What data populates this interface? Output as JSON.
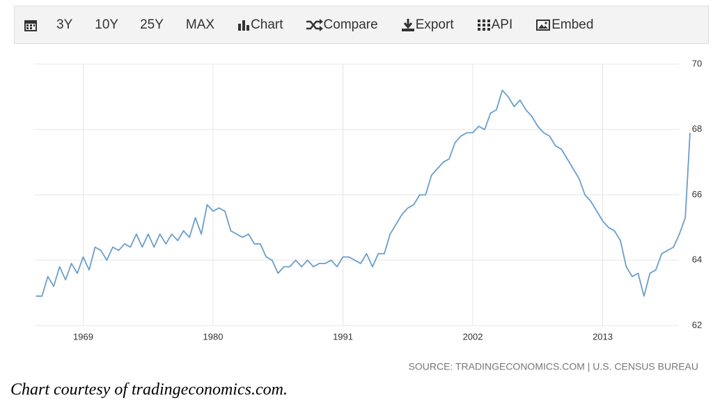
{
  "toolbar": [
    "3Y",
    "10Y",
    "25Y",
    "MAX",
    "Chart",
    "Compare",
    "Export",
    "API",
    "Embed"
  ],
  "chart_data": {
    "type": "line",
    "x": [
      1965.0,
      1965.5,
      1966.0,
      1966.5,
      1967.0,
      1967.5,
      1968.0,
      1968.5,
      1969.0,
      1969.5,
      1970.0,
      1970.5,
      1971.0,
      1971.5,
      1972.0,
      1972.5,
      1973.0,
      1973.5,
      1974.0,
      1974.5,
      1975.0,
      1975.5,
      1976.0,
      1976.5,
      1977.0,
      1977.5,
      1978.0,
      1978.5,
      1979.0,
      1979.5,
      1980.0,
      1980.5,
      1981.0,
      1981.5,
      1982.0,
      1982.5,
      1983.0,
      1983.5,
      1984.0,
      1984.5,
      1985.0,
      1985.5,
      1986.0,
      1986.5,
      1987.0,
      1987.5,
      1988.0,
      1988.5,
      1989.0,
      1989.5,
      1990.0,
      1990.5,
      1991.0,
      1991.5,
      1992.0,
      1992.5,
      1993.0,
      1993.5,
      1994.0,
      1994.5,
      1995.0,
      1995.5,
      1996.0,
      1996.5,
      1997.0,
      1997.5,
      1998.0,
      1998.5,
      1999.0,
      1999.5,
      2000.0,
      2000.5,
      2001.0,
      2001.5,
      2002.0,
      2002.5,
      2003.0,
      2003.5,
      2004.0,
      2004.5,
      2005.0,
      2005.5,
      2006.0,
      2006.5,
      2007.0,
      2007.5,
      2008.0,
      2008.5,
      2009.0,
      2009.5,
      2010.0,
      2010.5,
      2011.0,
      2011.5,
      2012.0,
      2012.5,
      2013.0,
      2013.5,
      2014.0,
      2014.5,
      2015.0,
      2015.5,
      2016.0,
      2016.5,
      2017.0,
      2017.5,
      2018.0,
      2018.5,
      2019.0,
      2019.5,
      2020.0,
      2020.4
    ],
    "values": [
      62.9,
      62.9,
      63.5,
      63.2,
      63.8,
      63.4,
      63.9,
      63.6,
      64.1,
      63.7,
      64.4,
      64.3,
      64.0,
      64.4,
      64.3,
      64.5,
      64.4,
      64.8,
      64.4,
      64.8,
      64.4,
      64.8,
      64.5,
      64.8,
      64.6,
      64.9,
      64.7,
      65.3,
      64.8,
      65.7,
      65.5,
      65.6,
      65.5,
      64.9,
      64.8,
      64.7,
      64.8,
      64.5,
      64.5,
      64.1,
      64.0,
      63.6,
      63.8,
      63.8,
      64.0,
      63.8,
      64.0,
      63.8,
      63.9,
      63.9,
      64.0,
      63.8,
      64.1,
      64.1,
      64.0,
      63.9,
      64.2,
      63.8,
      64.2,
      64.2,
      64.8,
      65.1,
      65.4,
      65.6,
      65.7,
      66.0,
      66.0,
      66.6,
      66.8,
      67.0,
      67.1,
      67.6,
      67.8,
      67.9,
      67.9,
      68.1,
      68.0,
      68.5,
      68.6,
      69.2,
      69.0,
      68.7,
      68.9,
      68.6,
      68.4,
      68.1,
      67.9,
      67.8,
      67.5,
      67.4,
      67.1,
      66.8,
      66.5,
      66.0,
      65.8,
      65.5,
      65.2,
      65.0,
      64.9,
      64.6,
      63.8,
      63.5,
      63.6,
      62.9,
      63.6,
      63.7,
      64.2,
      64.3,
      64.4,
      64.8,
      65.3,
      67.9
    ],
    "color": "#6a9ecb",
    "xlim": [
      1964.9,
      2020.4
    ],
    "xticks": [
      1969,
      1980,
      1991,
      2002,
      2013
    ],
    "ylim": [
      62,
      70
    ],
    "yticks": [
      62,
      64,
      66,
      68,
      70
    ],
    "grid": true,
    "source": "SOURCE: TRADINGECONOMICS.COM | U.S. CENSUS BUREAU"
  },
  "caption": "Chart courtesy of tradingeconomics.com."
}
